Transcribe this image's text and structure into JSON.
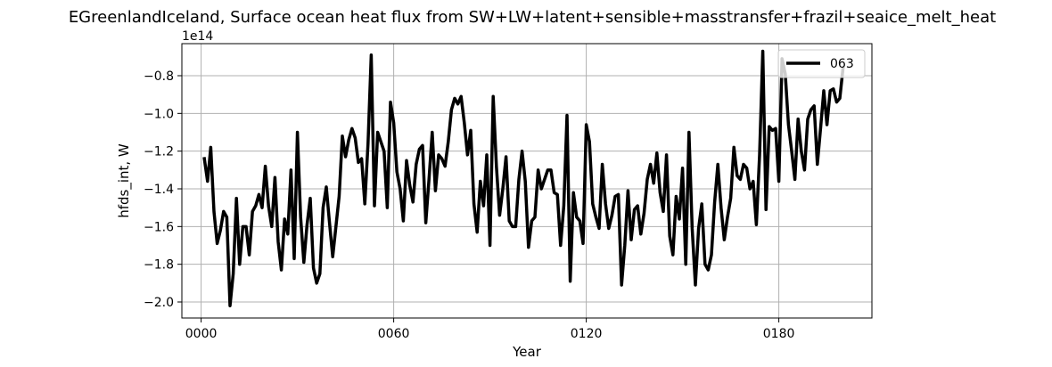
{
  "chart_data": {
    "type": "line",
    "title": "EGreenlandIceland, Surface ocean heat flux from SW+LW+latent+sensible+masstransfer+frazil+seaice_melt_heat",
    "xlabel": "Year",
    "ylabel": "hfds_int, W",
    "y_offset_label": "1e14",
    "y_scale": 100000000000000.0,
    "xlim": [
      -6,
      209
    ],
    "ylim": [
      -208500000000000.0,
      -63000000000000.0
    ],
    "x_ticks": [
      0,
      60,
      120,
      180
    ],
    "x_tick_labels": [
      "0000",
      "0060",
      "0120",
      "0180"
    ],
    "y_ticks": [
      -200000000000000.0,
      -180000000000000.0,
      -160000000000000.0,
      -140000000000000.0,
      -120000000000000.0,
      -100000000000000.0,
      -80000000000000.0
    ],
    "y_tick_labels": [
      "−2.0",
      "−1.8",
      "−1.6",
      "−1.4",
      "−1.2",
      "−1.0",
      "−0.8"
    ],
    "grid": true,
    "legend_position": "top-right",
    "series": [
      {
        "name": "063",
        "color": "#000000",
        "x_start": 1,
        "x_step": 1,
        "values": [
          -124000000000000.0,
          -136000000000000.0,
          -118000000000000.0,
          -152000000000000.0,
          -169000000000000.0,
          -162000000000000.0,
          -152000000000000.0,
          -155000000000000.0,
          -202000000000000.0,
          -185000000000000.0,
          -145000000000000.0,
          -180000000000000.0,
          -160000000000000.0,
          -160000000000000.0,
          -175000000000000.0,
          -152000000000000.0,
          -149000000000000.0,
          -143000000000000.0,
          -150000000000000.0,
          -128000000000000.0,
          -149000000000000.0,
          -160000000000000.0,
          -134000000000000.0,
          -168000000000000.0,
          -183000000000000.0,
          -156000000000000.0,
          -164000000000000.0,
          -130000000000000.0,
          -177000000000000.0,
          -110000000000000.0,
          -155000000000000.0,
          -179000000000000.0,
          -159000000000000.0,
          -145000000000000.0,
          -182000000000000.0,
          -190000000000000.0,
          -185000000000000.0,
          -150000000000000.0,
          -139000000000000.0,
          -158000000000000.0,
          -176000000000000.0,
          -160000000000000.0,
          -144000000000000.0,
          -112000000000000.0,
          -123000000000000.0,
          -114000000000000.0,
          -108000000000000.0,
          -113000000000000.0,
          -126000000000000.0,
          -124000000000000.0,
          -148000000000000.0,
          -116000000000000.0,
          -69000000000000.0,
          -149000000000000.0,
          -110000000000000.0,
          -115000000000000.0,
          -120000000000000.0,
          -150000000000000.0,
          -94000000000000.0,
          -105000000000000.0,
          -131000000000000.0,
          -140000000000000.0,
          -157000000000000.0,
          -125000000000000.0,
          -138000000000000.0,
          -147000000000000.0,
          -127000000000000.0,
          -119000000000000.0,
          -117000000000000.0,
          -158000000000000.0,
          -135000000000000.0,
          -110000000000000.0,
          -141000000000000.0,
          -122000000000000.0,
          -124000000000000.0,
          -128000000000000.0,
          -115000000000000.0,
          -98000000000000.0,
          -92000000000000.0,
          -95000000000000.0,
          -91000000000000.0,
          -105000000000000.0,
          -122000000000000.0,
          -109000000000000.0,
          -148000000000000.0,
          -163000000000000.0,
          -136000000000000.0,
          -149000000000000.0,
          -122000000000000.0,
          -170000000000000.0,
          -91000000000000.0,
          -128000000000000.0,
          -154000000000000.0,
          -140000000000000.0,
          -123000000000000.0,
          -157000000000000.0,
          -160000000000000.0,
          -160000000000000.0,
          -135000000000000.0,
          -120000000000000.0,
          -136000000000000.0,
          -171000000000000.0,
          -157000000000000.0,
          -155000000000000.0,
          -130000000000000.0,
          -140000000000000.0,
          -135000000000000.0,
          -130000000000000.0,
          -130000000000000.0,
          -142000000000000.0,
          -143000000000000.0,
          -170000000000000.0,
          -149000000000000.0,
          -101000000000000.0,
          -189000000000000.0,
          -142000000000000.0,
          -155000000000000.0,
          -157000000000000.0,
          -169000000000000.0,
          -106000000000000.0,
          -115000000000000.0,
          -148000000000000.0,
          -155000000000000.0,
          -161000000000000.0,
          -127000000000000.0,
          -148000000000000.0,
          -161000000000000.0,
          -154000000000000.0,
          -144000000000000.0,
          -143000000000000.0,
          -191000000000000.0,
          -170000000000000.0,
          -141000000000000.0,
          -167000000000000.0,
          -151000000000000.0,
          -149000000000000.0,
          -164000000000000.0,
          -153000000000000.0,
          -135000000000000.0,
          -127000000000000.0,
          -137000000000000.0,
          -121000000000000.0,
          -142000000000000.0,
          -152000000000000.0,
          -122000000000000.0,
          -165000000000000.0,
          -175000000000000.0,
          -144000000000000.0,
          -156000000000000.0,
          -129000000000000.0,
          -180000000000000.0,
          -110000000000000.0,
          -161000000000000.0,
          -191000000000000.0,
          -161000000000000.0,
          -148000000000000.0,
          -180000000000000.0,
          -183000000000000.0,
          -175000000000000.0,
          -147000000000000.0,
          -127000000000000.0,
          -150000000000000.0,
          -167000000000000.0,
          -155000000000000.0,
          -145000000000000.0,
          -118000000000000.0,
          -133000000000000.0,
          -135000000000000.0,
          -127000000000000.0,
          -129000000000000.0,
          -140000000000000.0,
          -136000000000000.0,
          -159000000000000.0,
          -122000000000000.0,
          -67000000000000.0,
          -151000000000000.0,
          -107000000000000.0,
          -109000000000000.0,
          -108000000000000.0,
          -136000000000000.0,
          -71000000000000.0,
          -79000000000000.0,
          -106000000000000.0,
          -120000000000000.0,
          -135000000000000.0,
          -103000000000000.0,
          -120000000000000.0,
          -130000000000000.0,
          -103000000000000.0,
          -98000000000000.0,
          -96000000000000.0,
          -127000000000000.0,
          -108000000000000.0,
          -88000000000000.0,
          -106000000000000.0,
          -88000000000000.0,
          -87000000000000.0,
          -94000000000000.0,
          -92000000000000.0,
          -76000000000000.0
        ]
      }
    ]
  }
}
